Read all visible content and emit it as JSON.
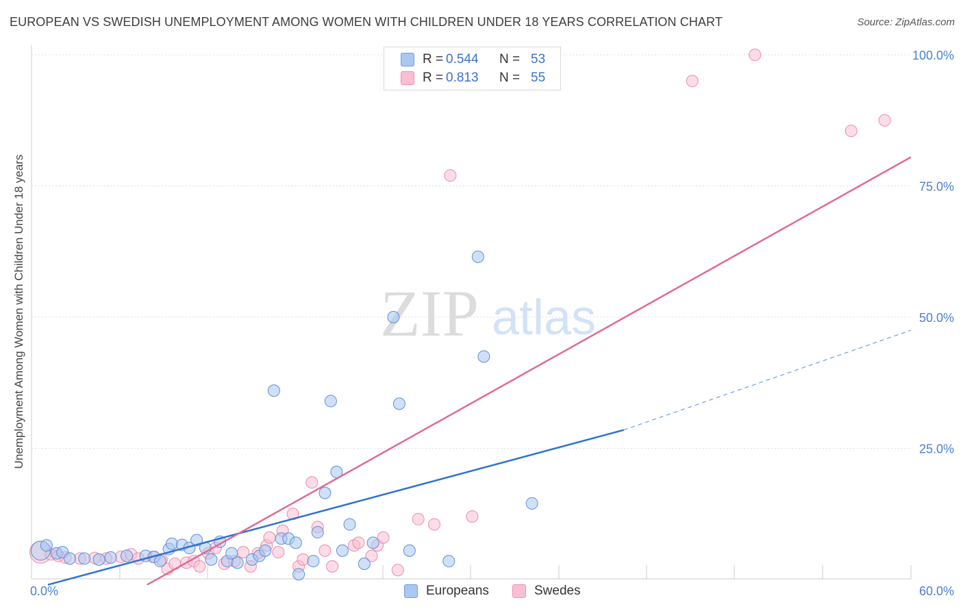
{
  "title": "EUROPEAN VS SWEDISH UNEMPLOYMENT AMONG WOMEN WITH CHILDREN UNDER 18 YEARS CORRELATION CHART",
  "source": "Source: ZipAtlas.com",
  "watermark": {
    "zip": "ZIP",
    "atlas": "atlas"
  },
  "legend": {
    "rows": [
      {
        "r_label": "R =",
        "r_value": "0.544",
        "n_label": "N =",
        "n_value": "53",
        "color": "#a9c7f0",
        "border": "#6f9fe0"
      },
      {
        "r_label": "R =",
        "r_value": "0.813",
        "n_label": "N =",
        "n_value": "55",
        "color": "#f9bfd1",
        "border": "#ee8fae"
      }
    ]
  },
  "bottom_legend": [
    {
      "label": "Europeans",
      "color": "#a9c7f0",
      "border": "#6f9fe0"
    },
    {
      "label": "Swedes",
      "color": "#f9bfd1",
      "border": "#ee8fae"
    }
  ],
  "chart_data": {
    "type": "scatter",
    "title": "EUROPEAN VS SWEDISH UNEMPLOYMENT AMONG WOMEN WITH CHILDREN UNDER 18 YEARS CORRELATION CHART",
    "xlabel": "",
    "ylabel": "Unemployment Among Women with Children Under 18 years",
    "xlim": [
      0,
      60
    ],
    "ylim": [
      0,
      100
    ],
    "x_tick_labels": [
      "0.0%",
      "60.0%"
    ],
    "y_ticks": [
      25,
      50,
      75,
      100
    ],
    "y_tick_labels": [
      "25.0%",
      "50.0%",
      "75.0%",
      "100.0%"
    ],
    "colors": {
      "europeans_fill": "#a9c7f0",
      "europeans_stroke": "#5b8fd8",
      "europeans_line": "#2f72d0",
      "swedes_fill": "#f9bfd1",
      "swedes_stroke": "#ec8aaa",
      "swedes_line": "#e06a93",
      "grid": "#dddddd",
      "tick_text": "#4a7fd0"
    },
    "series": [
      {
        "name": "Europeans",
        "trend": {
          "x0": 0.8,
          "y0": -1.0,
          "x1": 40.3,
          "y1": 28.5,
          "dash_x1": 60,
          "dash_y1": 47.5
        },
        "points": [
          {
            "x": 0.3,
            "y": 5.5,
            "big": true
          },
          {
            "x": 0.7,
            "y": 6.5
          },
          {
            "x": 1.4,
            "y": 5.0
          },
          {
            "x": 1.8,
            "y": 5.2
          },
          {
            "x": 2.3,
            "y": 4.0
          },
          {
            "x": 3.3,
            "y": 4.0
          },
          {
            "x": 4.3,
            "y": 3.8
          },
          {
            "x": 5.1,
            "y": 4.2
          },
          {
            "x": 6.2,
            "y": 4.5
          },
          {
            "x": 7.5,
            "y": 4.5
          },
          {
            "x": 8.1,
            "y": 4.3
          },
          {
            "x": 8.5,
            "y": 3.5
          },
          {
            "x": 9.1,
            "y": 5.8
          },
          {
            "x": 9.3,
            "y": 6.8
          },
          {
            "x": 10.0,
            "y": 6.6
          },
          {
            "x": 10.5,
            "y": 6.0
          },
          {
            "x": 11.0,
            "y": 7.5
          },
          {
            "x": 11.6,
            "y": 6.0
          },
          {
            "x": 12.0,
            "y": 3.8
          },
          {
            "x": 12.6,
            "y": 7.2
          },
          {
            "x": 13.1,
            "y": 3.5
          },
          {
            "x": 13.4,
            "y": 5.0
          },
          {
            "x": 13.8,
            "y": 3.2
          },
          {
            "x": 14.8,
            "y": 3.8
          },
          {
            "x": 15.3,
            "y": 4.5
          },
          {
            "x": 15.7,
            "y": 5.5
          },
          {
            "x": 16.3,
            "y": 36.0
          },
          {
            "x": 16.8,
            "y": 7.8
          },
          {
            "x": 17.3,
            "y": 7.8
          },
          {
            "x": 17.8,
            "y": 7.0
          },
          {
            "x": 18.0,
            "y": 1.0
          },
          {
            "x": 19.0,
            "y": 3.5
          },
          {
            "x": 19.3,
            "y": 9.0
          },
          {
            "x": 19.8,
            "y": 16.5
          },
          {
            "x": 20.2,
            "y": 34.0
          },
          {
            "x": 20.6,
            "y": 20.5
          },
          {
            "x": 21.0,
            "y": 5.5
          },
          {
            "x": 21.5,
            "y": 10.5
          },
          {
            "x": 22.5,
            "y": 3.0
          },
          {
            "x": 23.1,
            "y": 7.0
          },
          {
            "x": 24.5,
            "y": 50.0
          },
          {
            "x": 24.9,
            "y": 33.5
          },
          {
            "x": 25.6,
            "y": 5.5
          },
          {
            "x": 28.3,
            "y": 3.5
          },
          {
            "x": 30.3,
            "y": 61.5
          },
          {
            "x": 30.7,
            "y": 42.5
          },
          {
            "x": 34.0,
            "y": 14.5
          }
        ]
      },
      {
        "name": "Swedes",
        "trend": {
          "x0": 7.6,
          "y0": -1.0,
          "x1": 60,
          "y1": 80.5
        },
        "points": [
          {
            "x": 0.3,
            "y": 5.2,
            "big": true
          },
          {
            "x": 1.0,
            "y": 4.8
          },
          {
            "x": 1.5,
            "y": 4.5
          },
          {
            "x": 2.0,
            "y": 4.2
          },
          {
            "x": 3.0,
            "y": 4.0
          },
          {
            "x": 4.0,
            "y": 4.1
          },
          {
            "x": 4.8,
            "y": 4.0
          },
          {
            "x": 5.8,
            "y": 4.3
          },
          {
            "x": 6.5,
            "y": 4.8
          },
          {
            "x": 7.0,
            "y": 4.0
          },
          {
            "x": 8.0,
            "y": 4.3
          },
          {
            "x": 8.6,
            "y": 3.8
          },
          {
            "x": 9.0,
            "y": 2.0
          },
          {
            "x": 9.5,
            "y": 3.0
          },
          {
            "x": 10.3,
            "y": 3.2
          },
          {
            "x": 10.8,
            "y": 3.5
          },
          {
            "x": 11.2,
            "y": 2.5
          },
          {
            "x": 11.8,
            "y": 5.0
          },
          {
            "x": 12.3,
            "y": 6.0
          },
          {
            "x": 12.9,
            "y": 3.0
          },
          {
            "x": 13.6,
            "y": 3.5
          },
          {
            "x": 14.2,
            "y": 5.2
          },
          {
            "x": 14.7,
            "y": 2.5
          },
          {
            "x": 15.2,
            "y": 5.0
          },
          {
            "x": 15.8,
            "y": 6.5
          },
          {
            "x": 16.0,
            "y": 8.0
          },
          {
            "x": 16.6,
            "y": 5.2
          },
          {
            "x": 16.9,
            "y": 9.3
          },
          {
            "x": 17.6,
            "y": 12.5
          },
          {
            "x": 18.0,
            "y": 2.5
          },
          {
            "x": 18.3,
            "y": 3.8
          },
          {
            "x": 18.9,
            "y": 18.5
          },
          {
            "x": 19.3,
            "y": 10.0
          },
          {
            "x": 19.8,
            "y": 5.5
          },
          {
            "x": 20.3,
            "y": 2.5
          },
          {
            "x": 21.8,
            "y": 6.5
          },
          {
            "x": 22.1,
            "y": 7.0
          },
          {
            "x": 23.0,
            "y": 4.5
          },
          {
            "x": 23.4,
            "y": 6.5
          },
          {
            "x": 23.8,
            "y": 8.0
          },
          {
            "x": 24.8,
            "y": 1.8
          },
          {
            "x": 26.2,
            "y": 11.5
          },
          {
            "x": 27.3,
            "y": 10.5
          },
          {
            "x": 28.4,
            "y": 77.0
          },
          {
            "x": 29.9,
            "y": 12.0
          },
          {
            "x": 45.0,
            "y": 95.0
          },
          {
            "x": 49.3,
            "y": 100.0
          },
          {
            "x": 55.9,
            "y": 85.5
          },
          {
            "x": 58.2,
            "y": 87.5
          }
        ]
      }
    ]
  }
}
